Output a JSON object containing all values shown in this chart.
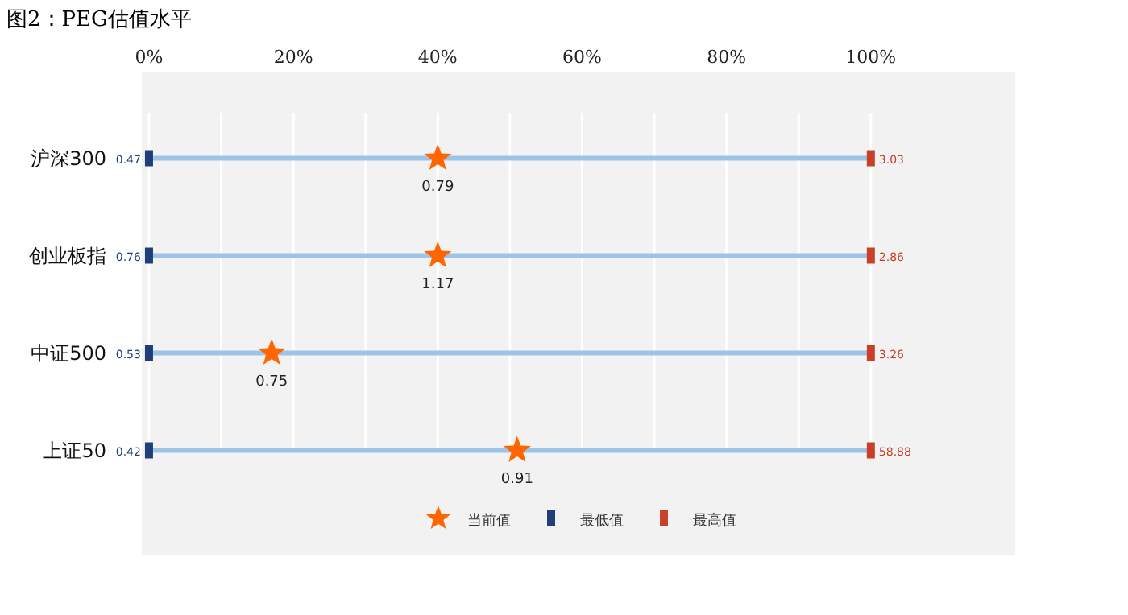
{
  "chart_data": {
    "type": "scatter",
    "title": "图2：PEG估值水平",
    "orientation": "horizontal",
    "categories": [
      "沪深300",
      "创业板指",
      "中证500",
      "上证50"
    ],
    "xlim": [
      -1,
      120
    ],
    "xticks": [
      {
        "value": 0,
        "label": "0%"
      },
      {
        "value": 10,
        "label": null
      },
      {
        "value": 20,
        "label": "20%"
      },
      {
        "value": 30,
        "label": null
      },
      {
        "value": 40,
        "label": "40%"
      },
      {
        "value": 50,
        "label": null
      },
      {
        "value": 60,
        "label": "60%"
      },
      {
        "value": 70,
        "label": null
      },
      {
        "value": 80,
        "label": "80%"
      },
      {
        "value": 90,
        "label": null
      },
      {
        "value": 100,
        "label": "100%"
      }
    ],
    "grid": "x",
    "legend": "bottom",
    "series": [
      {
        "type": "bar",
        "color": "#9dc3e6",
        "values": [
          100,
          100,
          100,
          100
        ]
      },
      {
        "name": "当前值",
        "marker": "star",
        "color": "#ff6600",
        "values": [
          40,
          40,
          17,
          51
        ]
      },
      {
        "name": "最低值",
        "marker": "square",
        "color": "#1f3f7a",
        "values": [
          0,
          0,
          0,
          0
        ]
      },
      {
        "name": "最高值",
        "marker": "square",
        "color": "#c8402a",
        "values": [
          100,
          100,
          100,
          100
        ]
      }
    ],
    "annotations": [
      {
        "text": "0.79",
        "x": 40,
        "y": "沪深300"
      },
      {
        "text": "1.17",
        "x": 40,
        "y": "创业板指"
      },
      {
        "text": "0.75",
        "x": 17,
        "y": "中证500"
      },
      {
        "text": "0.91",
        "x": 51,
        "y": "上证50"
      },
      {
        "text": "0.47",
        "x": 0,
        "y": "沪深300"
      },
      {
        "text": "0.76",
        "x": 0,
        "y": "创业板指"
      },
      {
        "text": "0.53",
        "x": 0,
        "y": "中证500"
      },
      {
        "text": "0.42",
        "x": 0,
        "y": "上证50"
      },
      {
        "text": "3.03",
        "x": 100,
        "y": "沪深300"
      },
      {
        "text": "2.86",
        "x": 100,
        "y": "创业板指"
      },
      {
        "text": "3.26",
        "x": 100,
        "y": "中证500"
      },
      {
        "text": "58.88",
        "x": 100,
        "y": "上证50"
      }
    ]
  }
}
